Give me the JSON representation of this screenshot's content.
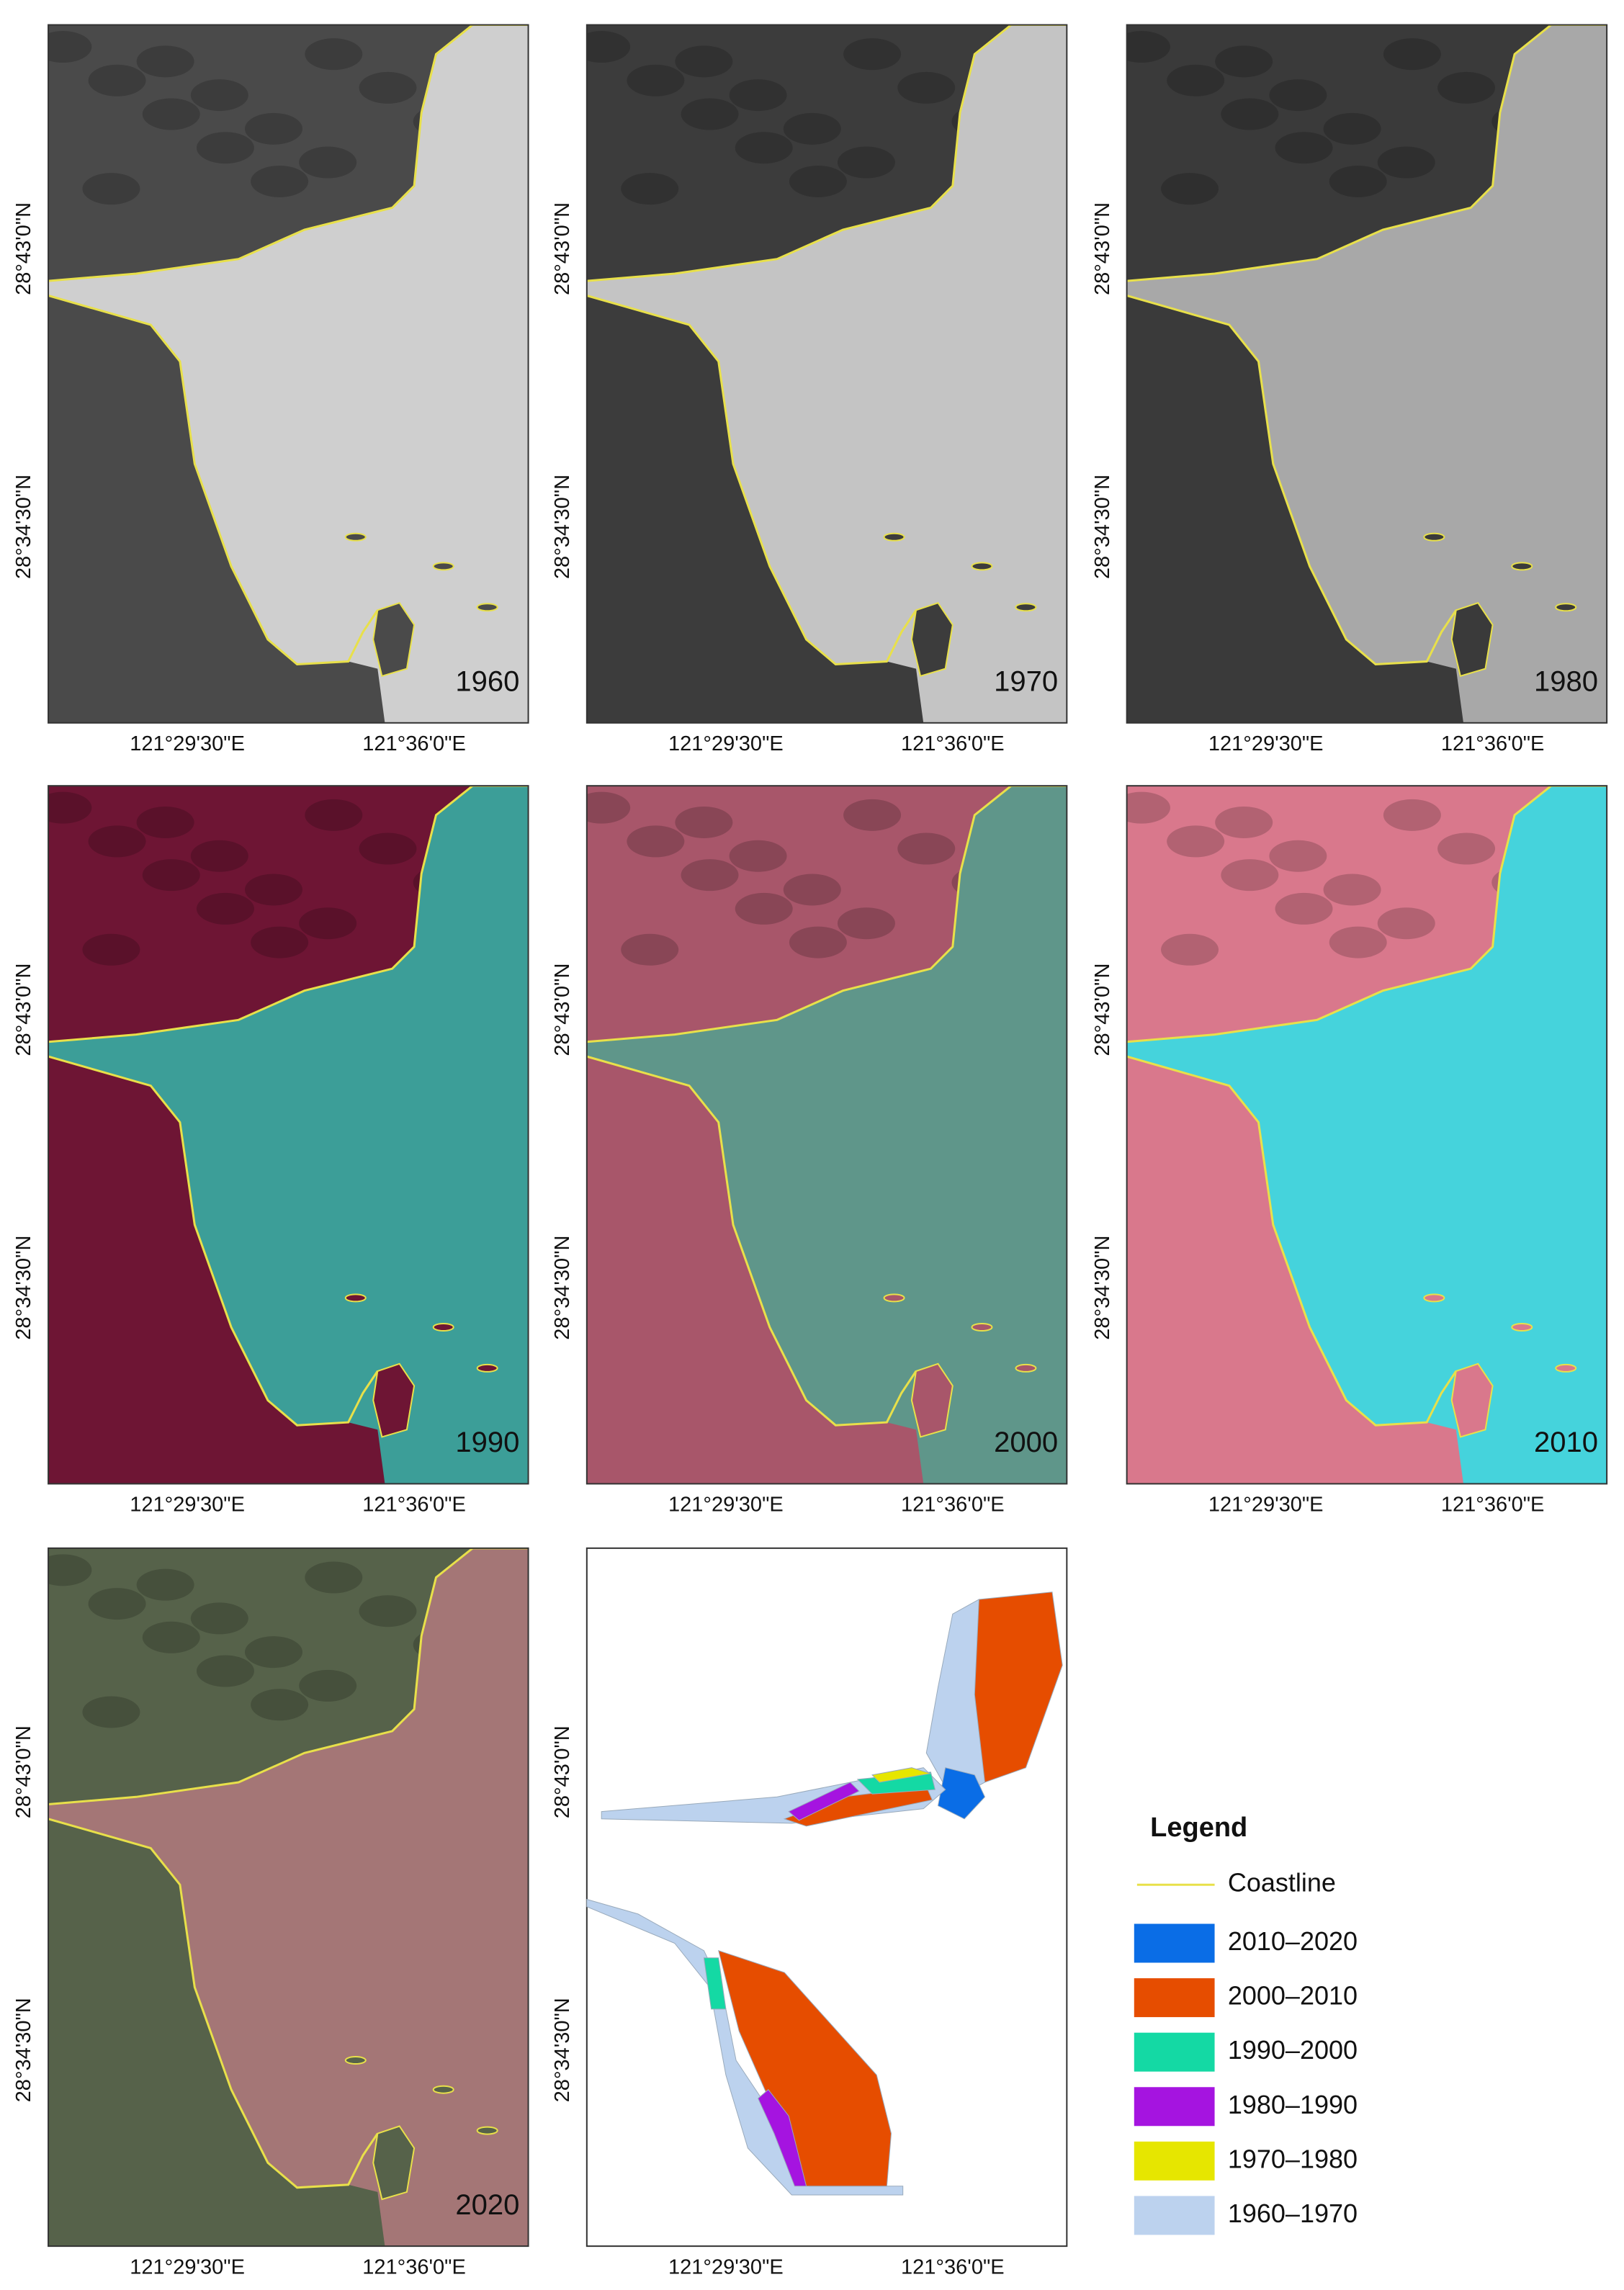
{
  "axes": {
    "lat_labels": [
      "28°43'0\"N",
      "28°34'30\"N"
    ],
    "lon_labels": [
      "121°29'30\"E",
      "121°36'0\"E"
    ]
  },
  "panels": [
    {
      "year": "1960",
      "land_color": "#4a4a4a",
      "water_color": "#cfcfcf"
    },
    {
      "year": "1970",
      "land_color": "#3c3c3c",
      "water_color": "#c4c4c4"
    },
    {
      "year": "1980",
      "land_color": "#3a3a3a",
      "water_color": "#a8a8a8"
    },
    {
      "year": "1990",
      "land_color": "#6e1534",
      "water_color": "#3c9e98"
    },
    {
      "year": "2000",
      "land_color": "#a8566a",
      "water_color": "#5f968a"
    },
    {
      "year": "2010",
      "land_color": "#d9788c",
      "water_color": "#45d3dc"
    },
    {
      "year": "2020",
      "land_color": "#56624a",
      "water_color": "#a47676"
    }
  ],
  "legend": {
    "title": "Legend",
    "coastline_label": "Coastline",
    "coastline_color": "#e8e04a",
    "items": [
      {
        "label": "2010–2020",
        "color": "#0a6de6"
      },
      {
        "label": "2000–2010",
        "color": "#e64d00"
      },
      {
        "label": "1990–2000",
        "color": "#14d9a4"
      },
      {
        "label": "1980–1990",
        "color": "#a514e0"
      },
      {
        "label": "1970–1980",
        "color": "#e6e600"
      },
      {
        "label": "1960–1970",
        "color": "#bcd2ee"
      }
    ]
  }
}
